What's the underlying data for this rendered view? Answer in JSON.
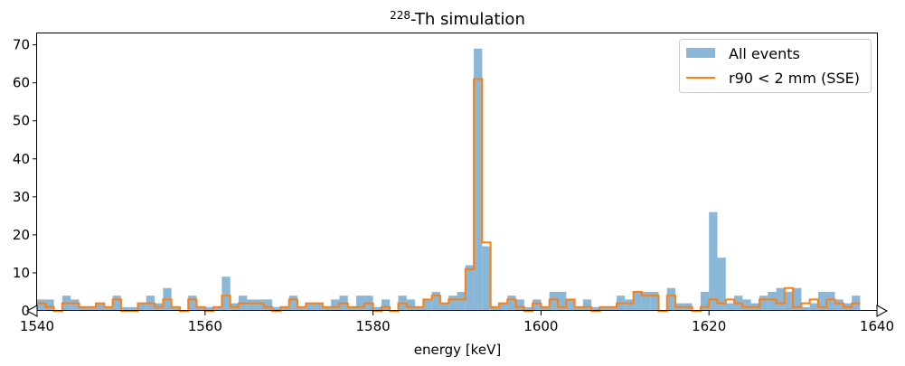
{
  "chart_data": {
    "type": "histogram",
    "title_sup": "228",
    "title_main": "-Th simulation",
    "xlabel": "energy [keV]",
    "ylabel": "",
    "xlim": [
      1540,
      1640
    ],
    "ylim": [
      0,
      73
    ],
    "bin_width": 1,
    "x_ticks": [
      1540,
      1560,
      1580,
      1600,
      1620,
      1640
    ],
    "y_ticks": [
      0,
      10,
      20,
      30,
      40,
      50,
      60,
      70
    ],
    "grid": false,
    "legend_position": "upper right",
    "series": [
      {
        "name": "All events",
        "style": "filled",
        "color": "#8ab6d8",
        "bin_start": 1540,
        "values": [
          3,
          3,
          0,
          4,
          3,
          1,
          1,
          2,
          1,
          4,
          1,
          1,
          2,
          4,
          2,
          6,
          1,
          0,
          4,
          1,
          1,
          1,
          9,
          2,
          4,
          3,
          3,
          3,
          1,
          1,
          4,
          1,
          2,
          2,
          1,
          3,
          4,
          1,
          4,
          4,
          1,
          3,
          0,
          4,
          3,
          1,
          3,
          5,
          2,
          4,
          5,
          12,
          69,
          17,
          1,
          2,
          4,
          3,
          1,
          3,
          1,
          5,
          5,
          3,
          1,
          3,
          1,
          1,
          1,
          4,
          3,
          5,
          5,
          5,
          0,
          6,
          2,
          2,
          0,
          5,
          26,
          14,
          2,
          4,
          3,
          2,
          4,
          5,
          6,
          5,
          6,
          1,
          2,
          5,
          5,
          3,
          2,
          4
        ]
      },
      {
        "name": "r90 < 2 mm (SSE)",
        "style": "step",
        "color": "#ff7f0e",
        "bin_start": 1540,
        "values": [
          2,
          1,
          0,
          2,
          2,
          1,
          1,
          2,
          1,
          3,
          0,
          0,
          2,
          2,
          1,
          3,
          1,
          0,
          3,
          1,
          0,
          1,
          4,
          1,
          2,
          2,
          2,
          1,
          0,
          1,
          3,
          1,
          2,
          2,
          1,
          1,
          2,
          1,
          1,
          2,
          0,
          1,
          0,
          2,
          1,
          1,
          3,
          4,
          2,
          3,
          3,
          11,
          61,
          18,
          1,
          2,
          3,
          1,
          0,
          2,
          1,
          3,
          1,
          3,
          1,
          1,
          0,
          1,
          1,
          2,
          2,
          5,
          4,
          4,
          0,
          4,
          1,
          1,
          0,
          1,
          3,
          2,
          3,
          2,
          1,
          1,
          3,
          3,
          2,
          6,
          1,
          2,
          3,
          1,
          3,
          2,
          1,
          2
        ]
      }
    ]
  }
}
